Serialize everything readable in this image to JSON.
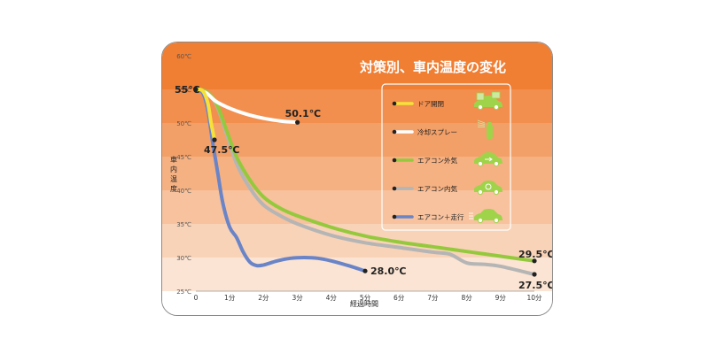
{
  "chart_data": {
    "type": "line",
    "title": "対策別、車内温度の変化",
    "xlabel": "経過時間",
    "ylabel": "車内温度",
    "xlim": [
      0,
      10
    ],
    "ylim": [
      25,
      60
    ],
    "x_ticks": [
      "0",
      "1分",
      "2分",
      "3分",
      "4分",
      "5分",
      "6分",
      "7分",
      "8分",
      "9分",
      "10分"
    ],
    "y_ticks": [
      "25℃",
      "30℃",
      "35℃",
      "40℃",
      "45℃",
      "50℃",
      "55℃",
      "60℃"
    ],
    "band_colors": [
      "#fbe4d3",
      "#f9d3b7",
      "#f7c29d",
      "#f5b182",
      "#f3a068",
      "#f28f4e",
      "#f07e33"
    ],
    "series": [
      {
        "name": "ドア開閉",
        "color": "#f5e13a",
        "icon": "car-doors-open-icon",
        "points": [
          [
            0,
            55
          ],
          [
            0.2,
            54.8
          ],
          [
            0.35,
            53
          ],
          [
            0.45,
            50
          ],
          [
            0.55,
            47.5
          ]
        ]
      },
      {
        "name": "冷却スプレー",
        "color": "#ffffff",
        "icon": "spray-can-icon",
        "points": [
          [
            0,
            55
          ],
          [
            0.3,
            54.5
          ],
          [
            0.6,
            53.2
          ],
          [
            1,
            52.2
          ],
          [
            1.5,
            51.3
          ],
          [
            2,
            50.7
          ],
          [
            2.5,
            50.3
          ],
          [
            3,
            50.1
          ]
        ]
      },
      {
        "name": "エアコン外気",
        "color": "#95c93d",
        "icon": "car-outside-air-icon",
        "points": [
          [
            0,
            55
          ],
          [
            0.3,
            54.7
          ],
          [
            0.6,
            53
          ],
          [
            0.9,
            49
          ],
          [
            1.2,
            45
          ],
          [
            1.6,
            41.5
          ],
          [
            2,
            39
          ],
          [
            2.5,
            37.3
          ],
          [
            3,
            36.2
          ],
          [
            4,
            34.5
          ],
          [
            5,
            33.2
          ],
          [
            6,
            32.3
          ],
          [
            7,
            31.6
          ],
          [
            8,
            30.9
          ],
          [
            9,
            30.2
          ],
          [
            10,
            29.5
          ]
        ]
      },
      {
        "name": "エアコン内気",
        "color": "#b5b5b5",
        "icon": "car-recirculation-icon",
        "points": [
          [
            0,
            55
          ],
          [
            0.3,
            54.6
          ],
          [
            0.6,
            52.8
          ],
          [
            0.9,
            48.5
          ],
          [
            1.2,
            44
          ],
          [
            1.6,
            40.3
          ],
          [
            2,
            37.8
          ],
          [
            2.5,
            36.2
          ],
          [
            3,
            35
          ],
          [
            4,
            33.3
          ],
          [
            5,
            32.2
          ],
          [
            6,
            31.5
          ],
          [
            7,
            30.8
          ],
          [
            7.5,
            30.5
          ],
          [
            8,
            29.2
          ],
          [
            8.5,
            29
          ],
          [
            9,
            28.7
          ],
          [
            10,
            27.5
          ]
        ]
      },
      {
        "name": "エアコン＋走行",
        "color": "#6a84c8",
        "icon": "car-driving-icon",
        "points": [
          [
            0,
            55
          ],
          [
            0.2,
            54.5
          ],
          [
            0.35,
            52
          ],
          [
            0.5,
            47
          ],
          [
            0.65,
            42.5
          ],
          [
            0.8,
            38
          ],
          [
            1,
            34.5
          ],
          [
            1.2,
            33
          ],
          [
            1.4,
            30.8
          ],
          [
            1.6,
            29.3
          ],
          [
            1.8,
            28.8
          ],
          [
            2,
            28.9
          ],
          [
            2.4,
            29.5
          ],
          [
            2.8,
            29.9
          ],
          [
            3.2,
            30
          ],
          [
            3.6,
            29.9
          ],
          [
            4,
            29.5
          ],
          [
            4.5,
            28.8
          ],
          [
            5,
            28
          ]
        ]
      }
    ],
    "data_labels": [
      {
        "text": "55℃",
        "x": 0,
        "y": 55
      },
      {
        "text": "50.1℃",
        "x": 3,
        "y": 50.1
      },
      {
        "text": "47.5℃",
        "x": 0.55,
        "y": 47.5
      },
      {
        "text": "29.5℃",
        "x": 10,
        "y": 29.5
      },
      {
        "text": "27.5℃",
        "x": 10,
        "y": 27.5
      },
      {
        "text": "28.0℃",
        "x": 5,
        "y": 28
      }
    ],
    "legend_position": "top-right",
    "grid": false
  }
}
